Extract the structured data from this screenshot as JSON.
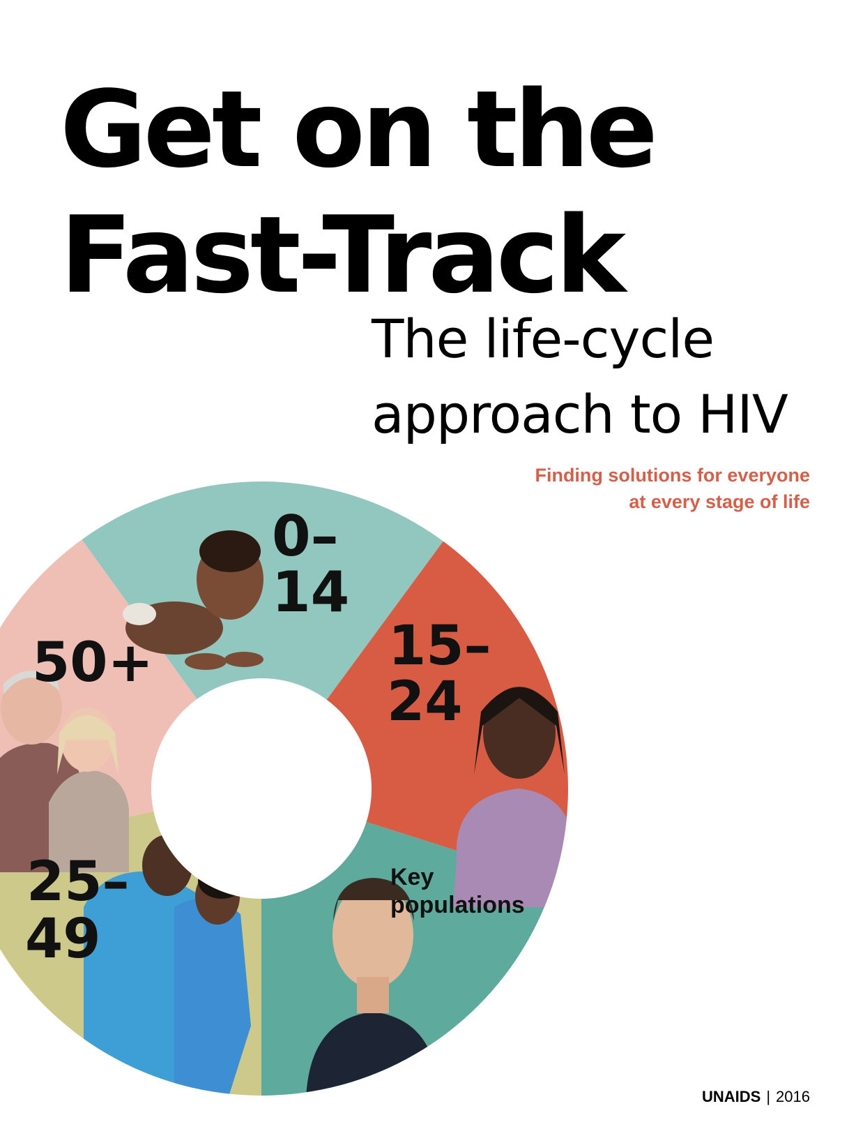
{
  "title": {
    "line1": "Get on the",
    "line2": "Fast-Track"
  },
  "subtitle": {
    "line1": "The life-cycle",
    "line2": "approach to HIV"
  },
  "tagline": {
    "line1": "Finding solutions for everyone",
    "line2": "at every stage of life"
  },
  "segments": [
    {
      "name": "children",
      "label_line1": "0–",
      "label_line2": "14",
      "color": "#92c7bf"
    },
    {
      "name": "youth",
      "label_line1": "15–",
      "label_line2": "24",
      "color": "#d85c44"
    },
    {
      "name": "key-populations",
      "label_line1": "Key",
      "label_line2": "populations",
      "color": "#5eaa9c"
    },
    {
      "name": "adults",
      "label_line1": "25–",
      "label_line2": "49",
      "color": "#cdc98a"
    },
    {
      "name": "older",
      "label_line1": "50+",
      "label_line2": "",
      "color": "#efbfb6"
    }
  ],
  "footer": {
    "org": "UNAIDS",
    "separator": "|",
    "year": "2016"
  },
  "colors": {
    "accent": "#d4604a"
  }
}
